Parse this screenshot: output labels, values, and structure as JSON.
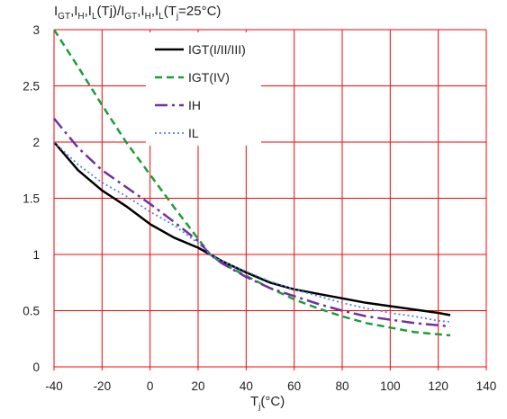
{
  "chart_data": {
    "type": "line",
    "title_parts": [
      {
        "t": "I",
        "s": "GT"
      },
      {
        "t": ",I",
        "s": "H"
      },
      {
        "t": ",I",
        "s": "L"
      },
      {
        "t": "(Tj)/I",
        "s": "GT"
      },
      {
        "t": ",I",
        "s": "H"
      },
      {
        "t": ",I",
        "s": "L"
      },
      {
        "t": "(T",
        "s": "j"
      },
      {
        "t": "=25°C)",
        "s": ""
      }
    ],
    "xlabel_parts": [
      {
        "t": "T",
        "s": "j"
      },
      {
        "t": "(°C)",
        "s": ""
      }
    ],
    "xlim": [
      -40,
      140
    ],
    "ylim": [
      0,
      3
    ],
    "xticks": [
      "-40",
      "-20",
      "0",
      "20",
      "40",
      "60",
      "80",
      "100",
      "120",
      "140"
    ],
    "yticks": [
      "0",
      "0.5",
      "1",
      "1.5",
      "2",
      "2.5",
      "3"
    ],
    "grid": true,
    "grid_color": "#ff0000",
    "legend_position": "top-center",
    "series": [
      {
        "name": "IGT(I/II/III)",
        "color": "#000000",
        "dash": "solid",
        "x": [
          -40,
          -30,
          -20,
          -10,
          0,
          10,
          20,
          25,
          30,
          40,
          50,
          60,
          70,
          80,
          90,
          100,
          110,
          120,
          125
        ],
        "y": [
          2.0,
          1.75,
          1.57,
          1.43,
          1.27,
          1.15,
          1.06,
          1.0,
          0.94,
          0.84,
          0.75,
          0.69,
          0.65,
          0.61,
          0.57,
          0.54,
          0.51,
          0.48,
          0.46
        ]
      },
      {
        "name": "IGT(IV)",
        "color": "#1a9e3a",
        "dash": "dash",
        "x": [
          -40,
          -30,
          -20,
          -10,
          0,
          10,
          20,
          25,
          30,
          40,
          50,
          60,
          70,
          80,
          90,
          100,
          110,
          120,
          125
        ],
        "y": [
          3.0,
          2.67,
          2.33,
          2.0,
          1.71,
          1.42,
          1.14,
          1.0,
          0.92,
          0.81,
          0.7,
          0.6,
          0.52,
          0.45,
          0.39,
          0.35,
          0.31,
          0.29,
          0.28
        ]
      },
      {
        "name": "IH",
        "color": "#7030a0",
        "dash": "dashdot",
        "x": [
          -40,
          -30,
          -20,
          -10,
          0,
          10,
          20,
          25,
          30,
          40,
          50,
          60,
          70,
          80,
          90,
          100,
          110,
          120,
          125
        ],
        "y": [
          2.21,
          1.95,
          1.75,
          1.6,
          1.45,
          1.29,
          1.12,
          1.0,
          0.92,
          0.8,
          0.7,
          0.63,
          0.56,
          0.5,
          0.45,
          0.42,
          0.39,
          0.37,
          0.36
        ]
      },
      {
        "name": "IL",
        "color": "#4a86e8",
        "dash": "dot",
        "x": [
          -40,
          -30,
          -20,
          -10,
          0,
          10,
          20,
          25,
          30,
          40,
          50,
          60,
          70,
          80,
          90,
          100,
          110,
          120,
          125
        ],
        "y": [
          2.0,
          1.8,
          1.64,
          1.52,
          1.38,
          1.26,
          1.1,
          1.0,
          0.94,
          0.85,
          0.76,
          0.69,
          0.63,
          0.57,
          0.52,
          0.48,
          0.45,
          0.41,
          0.4
        ]
      }
    ]
  }
}
